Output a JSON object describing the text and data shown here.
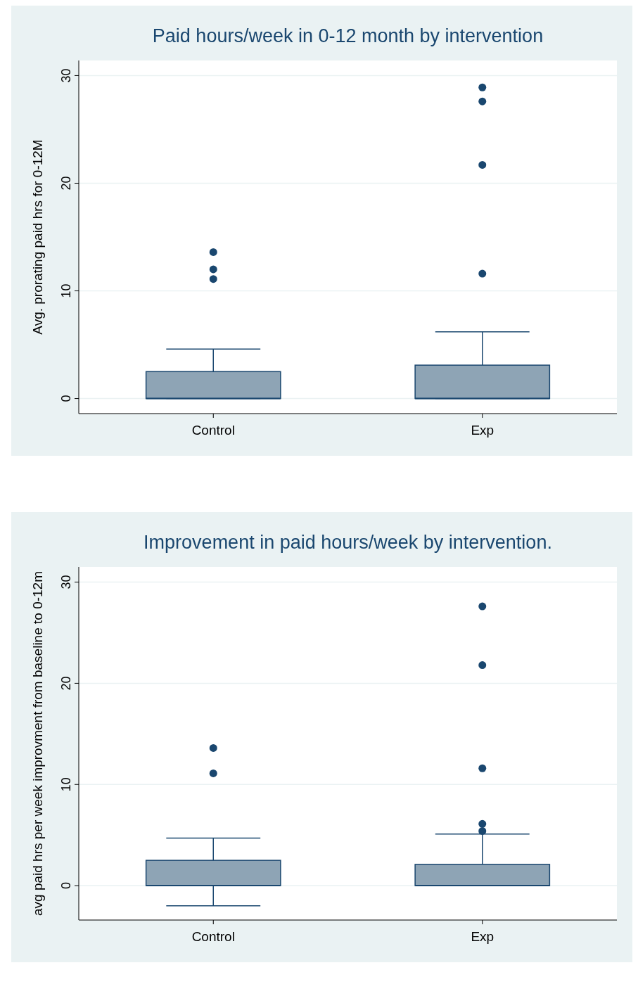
{
  "chart_data": [
    {
      "type": "box",
      "title": "Paid hours/week in 0-12 month by intervention",
      "ylabel": "Avg. prorating paid hrs for 0-12M",
      "categories": [
        "Control",
        "Exp"
      ],
      "color": "#8ea4b5",
      "ylim": [
        -1.4,
        31.4
      ],
      "yticks": [
        0,
        10,
        20,
        30
      ],
      "grid": "y",
      "boxes": [
        {
          "low": 0,
          "q1": 0,
          "median": 0,
          "q3": 2.5,
          "high": 4.6,
          "outliers": [
            13.6,
            12.0,
            11.1
          ]
        },
        {
          "low": 0,
          "q1": 0,
          "median": 0,
          "q3": 3.1,
          "high": 6.2,
          "outliers": [
            28.9,
            27.6,
            21.7,
            11.6
          ]
        }
      ]
    },
    {
      "type": "box",
      "title": "Improvement in paid hours/week by intervention.",
      "ylabel": "avg paid hrs per week improvment from baseline to 0-12m",
      "categories": [
        "Control",
        "Exp"
      ],
      "color": "#8ea4b5",
      "ylim": [
        -3.4,
        31.5
      ],
      "yticks": [
        0,
        10,
        20,
        30
      ],
      "grid": "y",
      "boxes": [
        {
          "low": -2.0,
          "q1": 0,
          "median": 0,
          "q3": 2.5,
          "high": 4.7,
          "outliers": [
            13.6,
            11.1
          ]
        },
        {
          "low": 0,
          "q1": 0,
          "median": 0,
          "q3": 2.1,
          "high": 5.1,
          "outliers": [
            27.6,
            21.8,
            11.6,
            6.1,
            5.4
          ]
        }
      ]
    }
  ]
}
